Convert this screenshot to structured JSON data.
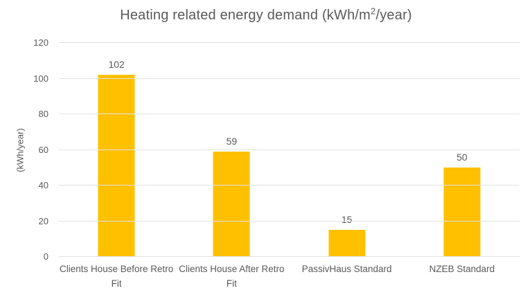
{
  "title": {
    "prefix": "Heating related energy demand (kWh/m",
    "sup": "2",
    "suffix": "/year)"
  },
  "chart_data": {
    "type": "bar",
    "title": "Heating related energy demand (kWh/m²/year)",
    "categories": [
      "Clients House Before Retro Fit",
      "Clients House After Retro Fit",
      "PassivHaus Standard",
      "NZEB Standard"
    ],
    "values": [
      102,
      59,
      15,
      50
    ],
    "data_labels": [
      "102",
      "59",
      "15",
      "50"
    ],
    "xlabel": "",
    "ylabel": "(kWh/year)",
    "ylim": [
      0,
      120
    ],
    "ytick_step": 20,
    "ytick_labels": [
      "0",
      "20",
      "40",
      "60",
      "80",
      "100",
      "120"
    ],
    "grid": true,
    "legend": false,
    "bar_color": "#FFC000",
    "text_color": "#595959",
    "gridline_color": "#e2e2e2",
    "background_color": "#ffffff"
  }
}
